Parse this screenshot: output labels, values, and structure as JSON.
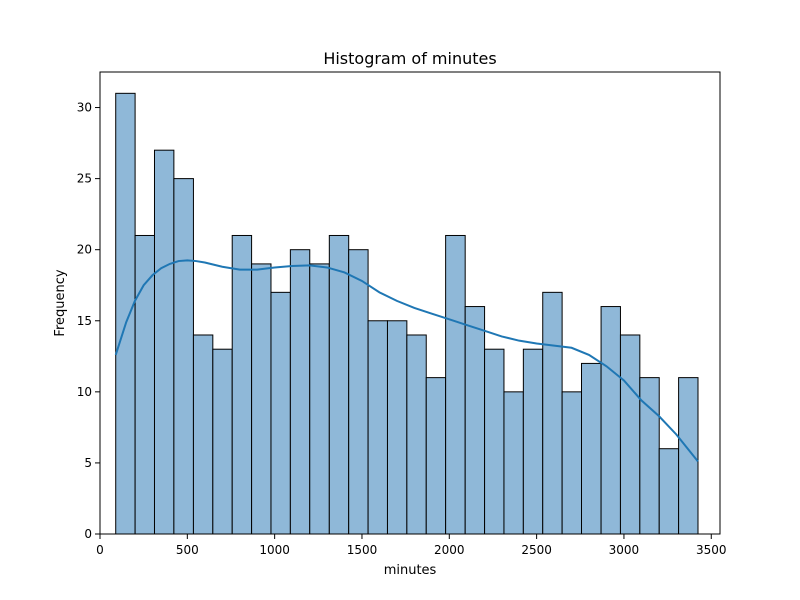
{
  "chart_data": {
    "type": "bar",
    "subtype": "histogram-with-kde",
    "title": "Histogram of minutes",
    "xlabel": "minutes",
    "ylabel": "Frequency",
    "xlim": [
      0,
      3550
    ],
    "ylim": [
      0,
      32.5
    ],
    "xticks": [
      0,
      500,
      1000,
      1500,
      2000,
      2500,
      3000,
      3500
    ],
    "yticks": [
      0,
      5,
      10,
      15,
      20,
      25,
      30
    ],
    "grid": false,
    "colors": {
      "bar_fill": "#8fb8d8",
      "bar_edge": "#000000",
      "kde_line": "#1f77b4"
    },
    "bins": [
      {
        "x0": 90,
        "x1": 201,
        "count": 31
      },
      {
        "x0": 201,
        "x1": 312,
        "count": 21
      },
      {
        "x0": 312,
        "x1": 423,
        "count": 27
      },
      {
        "x0": 423,
        "x1": 535,
        "count": 25
      },
      {
        "x0": 535,
        "x1": 646,
        "count": 14
      },
      {
        "x0": 646,
        "x1": 757,
        "count": 13
      },
      {
        "x0": 757,
        "x1": 868,
        "count": 21
      },
      {
        "x0": 868,
        "x1": 979,
        "count": 19
      },
      {
        "x0": 979,
        "x1": 1090,
        "count": 17
      },
      {
        "x0": 1090,
        "x1": 1201,
        "count": 20
      },
      {
        "x0": 1201,
        "x1": 1313,
        "count": 19
      },
      {
        "x0": 1313,
        "x1": 1424,
        "count": 21
      },
      {
        "x0": 1424,
        "x1": 1535,
        "count": 20
      },
      {
        "x0": 1535,
        "x1": 1646,
        "count": 15
      },
      {
        "x0": 1646,
        "x1": 1757,
        "count": 15
      },
      {
        "x0": 1757,
        "x1": 1868,
        "count": 14
      },
      {
        "x0": 1868,
        "x1": 1979,
        "count": 11
      },
      {
        "x0": 1979,
        "x1": 2091,
        "count": 21
      },
      {
        "x0": 2091,
        "x1": 2202,
        "count": 16
      },
      {
        "x0": 2202,
        "x1": 2313,
        "count": 13
      },
      {
        "x0": 2313,
        "x1": 2424,
        "count": 10
      },
      {
        "x0": 2424,
        "x1": 2535,
        "count": 13
      },
      {
        "x0": 2535,
        "x1": 2646,
        "count": 17
      },
      {
        "x0": 2646,
        "x1": 2757,
        "count": 10
      },
      {
        "x0": 2757,
        "x1": 2869,
        "count": 12
      },
      {
        "x0": 2869,
        "x1": 2980,
        "count": 16
      },
      {
        "x0": 2980,
        "x1": 3091,
        "count": 14
      },
      {
        "x0": 3091,
        "x1": 3202,
        "count": 11
      },
      {
        "x0": 3202,
        "x1": 3313,
        "count": 6
      },
      {
        "x0": 3313,
        "x1": 3424,
        "count": 11
      }
    ],
    "kde": {
      "x": [
        90,
        150,
        200,
        250,
        300,
        350,
        400,
        450,
        500,
        550,
        600,
        700,
        800,
        900,
        1000,
        1100,
        1200,
        1300,
        1400,
        1500,
        1600,
        1700,
        1800,
        1900,
        2000,
        2100,
        2200,
        2300,
        2400,
        2500,
        2600,
        2700,
        2800,
        2900,
        3000,
        3100,
        3200,
        3300,
        3424
      ],
      "y": [
        12.6,
        14.9,
        16.4,
        17.5,
        18.2,
        18.7,
        19.0,
        19.2,
        19.25,
        19.2,
        19.1,
        18.8,
        18.6,
        18.6,
        18.75,
        18.85,
        18.9,
        18.75,
        18.4,
        17.8,
        17.0,
        16.4,
        15.9,
        15.5,
        15.1,
        14.7,
        14.3,
        13.9,
        13.6,
        13.4,
        13.25,
        13.1,
        12.6,
        11.8,
        10.8,
        9.4,
        8.3,
        7.0,
        5.1
      ]
    }
  }
}
